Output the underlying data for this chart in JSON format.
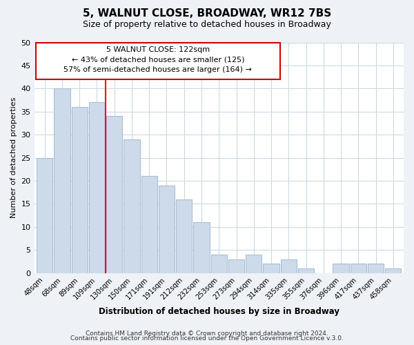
{
  "title": "5, WALNUT CLOSE, BROADWAY, WR12 7BS",
  "subtitle": "Size of property relative to detached houses in Broadway",
  "xlabel": "Distribution of detached houses by size in Broadway",
  "ylabel": "Number of detached properties",
  "bar_labels": [
    "48sqm",
    "68sqm",
    "89sqm",
    "109sqm",
    "130sqm",
    "150sqm",
    "171sqm",
    "191sqm",
    "212sqm",
    "232sqm",
    "253sqm",
    "273sqm",
    "294sqm",
    "314sqm",
    "335sqm",
    "355sqm",
    "376sqm",
    "396sqm",
    "417sqm",
    "437sqm",
    "458sqm"
  ],
  "bar_values": [
    25,
    40,
    36,
    37,
    34,
    29,
    21,
    19,
    16,
    11,
    4,
    3,
    4,
    2,
    3,
    1,
    0,
    2,
    2,
    2,
    1
  ],
  "bar_color": "#ccdaea",
  "bar_edgecolor": "#a8c0d6",
  "redline_after_index": 3,
  "annotation_title": "5 WALNUT CLOSE: 122sqm",
  "annotation_line1": "← 43% of detached houses are smaller (125)",
  "annotation_line2": "57% of semi-detached houses are larger (164) →",
  "annotation_box_edgecolor": "#cc0000",
  "ylim": [
    0,
    50
  ],
  "yticks": [
    0,
    5,
    10,
    15,
    20,
    25,
    30,
    35,
    40,
    45,
    50
  ],
  "footer1": "Contains HM Land Registry data © Crown copyright and database right 2024.",
  "footer2": "Contains public sector information licensed under the Open Government Licence v.3.0.",
  "bg_color": "#eef2f7",
  "plot_bg_color": "#ffffff"
}
